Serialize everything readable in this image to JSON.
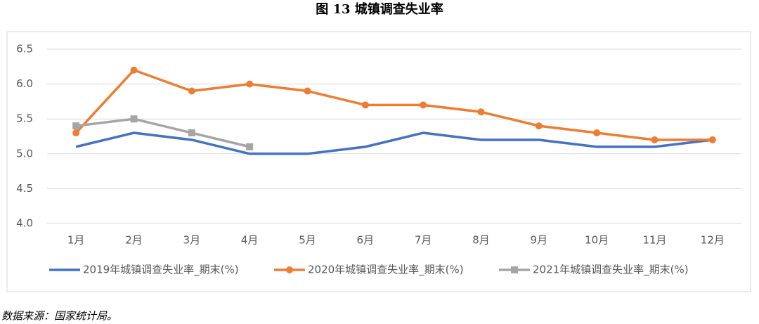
{
  "chart_data": {
    "type": "line",
    "title": "图 13  城镇调查失业率",
    "source": "数据来源：国家统计局。",
    "categories": [
      "1月",
      "2月",
      "3月",
      "4月",
      "5月",
      "6月",
      "7月",
      "8月",
      "9月",
      "10月",
      "11月",
      "12月"
    ],
    "series": [
      {
        "name": "2019年城镇调查失业率_期末(%)",
        "color": "#4472c4",
        "marker": "none",
        "values": [
          5.1,
          5.3,
          5.2,
          5.0,
          5.0,
          5.1,
          5.3,
          5.2,
          5.2,
          5.1,
          5.1,
          5.2
        ]
      },
      {
        "name": "2020年城镇调查失业率_期末(%)",
        "color": "#ed7d31",
        "marker": "circle",
        "values": [
          5.3,
          6.2,
          5.9,
          6.0,
          5.9,
          5.7,
          5.7,
          5.6,
          5.4,
          5.3,
          5.2,
          5.2
        ]
      },
      {
        "name": "2021年城镇调查失业率_期末(%)",
        "color": "#a5a5a5",
        "marker": "square",
        "values": [
          5.4,
          5.5,
          5.3,
          5.1,
          null,
          null,
          null,
          null,
          null,
          null,
          null,
          null
        ]
      }
    ],
    "ylim": [
      4.0,
      6.5
    ],
    "yticks": [
      {
        "value": 4,
        "label": "4.0"
      },
      {
        "value": 4.5,
        "label": "4.5"
      },
      {
        "value": 5,
        "label": "5.0"
      },
      {
        "value": 5.5,
        "label": "5.5"
      },
      {
        "value": 6,
        "label": "6.0"
      },
      {
        "value": 6.5,
        "label": "6.5"
      }
    ],
    "grid": true,
    "legend": "bottom"
  }
}
